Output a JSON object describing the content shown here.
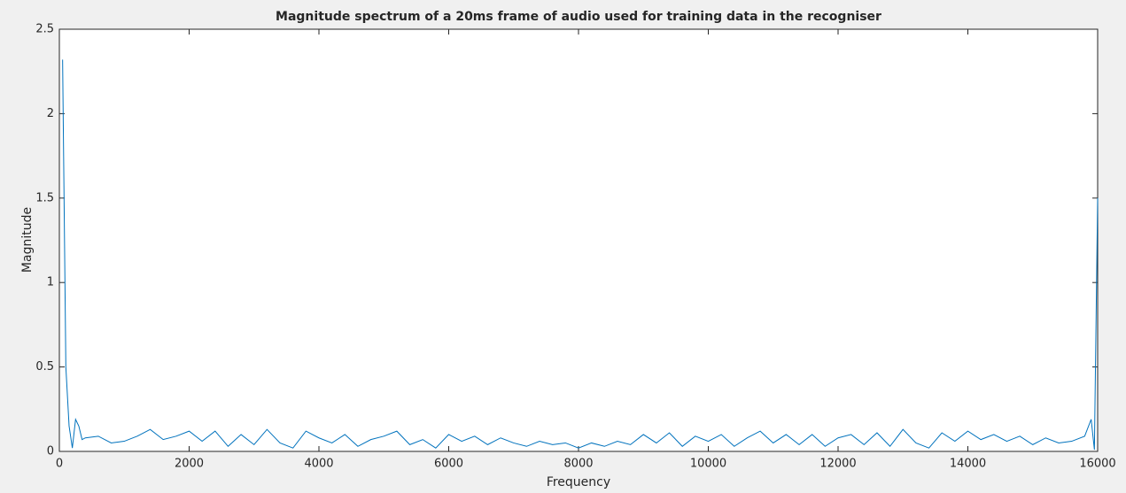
{
  "chart_data": {
    "type": "line",
    "title": "Magnitude spectrum of a 20ms frame of audio used for training data in the recogniser",
    "xlabel": "Frequency",
    "ylabel": "Magnitude",
    "x": [
      50,
      100,
      150,
      200,
      250,
      300,
      350,
      400,
      600,
      800,
      1000,
      1200,
      1400,
      1600,
      1800,
      2000,
      2200,
      2400,
      2600,
      2800,
      3000,
      3200,
      3400,
      3600,
      3800,
      4000,
      4200,
      4400,
      4600,
      4800,
      5000,
      5200,
      5400,
      5600,
      5800,
      6000,
      6200,
      6400,
      6600,
      6800,
      7000,
      7200,
      7400,
      7600,
      7800,
      8000,
      8200,
      8400,
      8600,
      8800,
      9000,
      9200,
      9400,
      9600,
      9800,
      10000,
      10200,
      10400,
      10600,
      10800,
      11000,
      11200,
      11400,
      11600,
      11800,
      12000,
      12200,
      12400,
      12600,
      12800,
      13000,
      13200,
      13400,
      13600,
      13800,
      14000,
      14200,
      14400,
      14600,
      14800,
      15000,
      15200,
      15400,
      15600,
      15800,
      15900,
      15950,
      16000
    ],
    "series": [
      {
        "name": "Magnitude",
        "color": "#0072bd",
        "values": [
          2.32,
          0.5,
          0.15,
          0.02,
          0.19,
          0.15,
          0.07,
          0.08,
          0.09,
          0.05,
          0.06,
          0.09,
          0.13,
          0.07,
          0.09,
          0.12,
          0.06,
          0.12,
          0.03,
          0.1,
          0.04,
          0.13,
          0.05,
          0.02,
          0.12,
          0.08,
          0.05,
          0.1,
          0.03,
          0.07,
          0.09,
          0.12,
          0.04,
          0.07,
          0.02,
          0.1,
          0.06,
          0.09,
          0.04,
          0.08,
          0.05,
          0.03,
          0.06,
          0.04,
          0.05,
          0.02,
          0.05,
          0.03,
          0.06,
          0.04,
          0.1,
          0.05,
          0.11,
          0.03,
          0.09,
          0.06,
          0.1,
          0.03,
          0.08,
          0.12,
          0.05,
          0.1,
          0.04,
          0.1,
          0.03,
          0.08,
          0.1,
          0.04,
          0.11,
          0.03,
          0.13,
          0.05,
          0.02,
          0.11,
          0.06,
          0.12,
          0.07,
          0.1,
          0.06,
          0.09,
          0.04,
          0.08,
          0.05,
          0.06,
          0.09,
          0.19,
          0.01,
          1.5
        ]
      }
    ],
    "xlim": [
      0,
      16000
    ],
    "xticks": [
      0,
      2000,
      4000,
      6000,
      8000,
      10000,
      12000,
      14000,
      16000
    ],
    "ylim": [
      0,
      2.5
    ],
    "yticks": [
      0,
      0.5,
      1,
      1.5,
      2,
      2.5
    ],
    "grid": false
  }
}
